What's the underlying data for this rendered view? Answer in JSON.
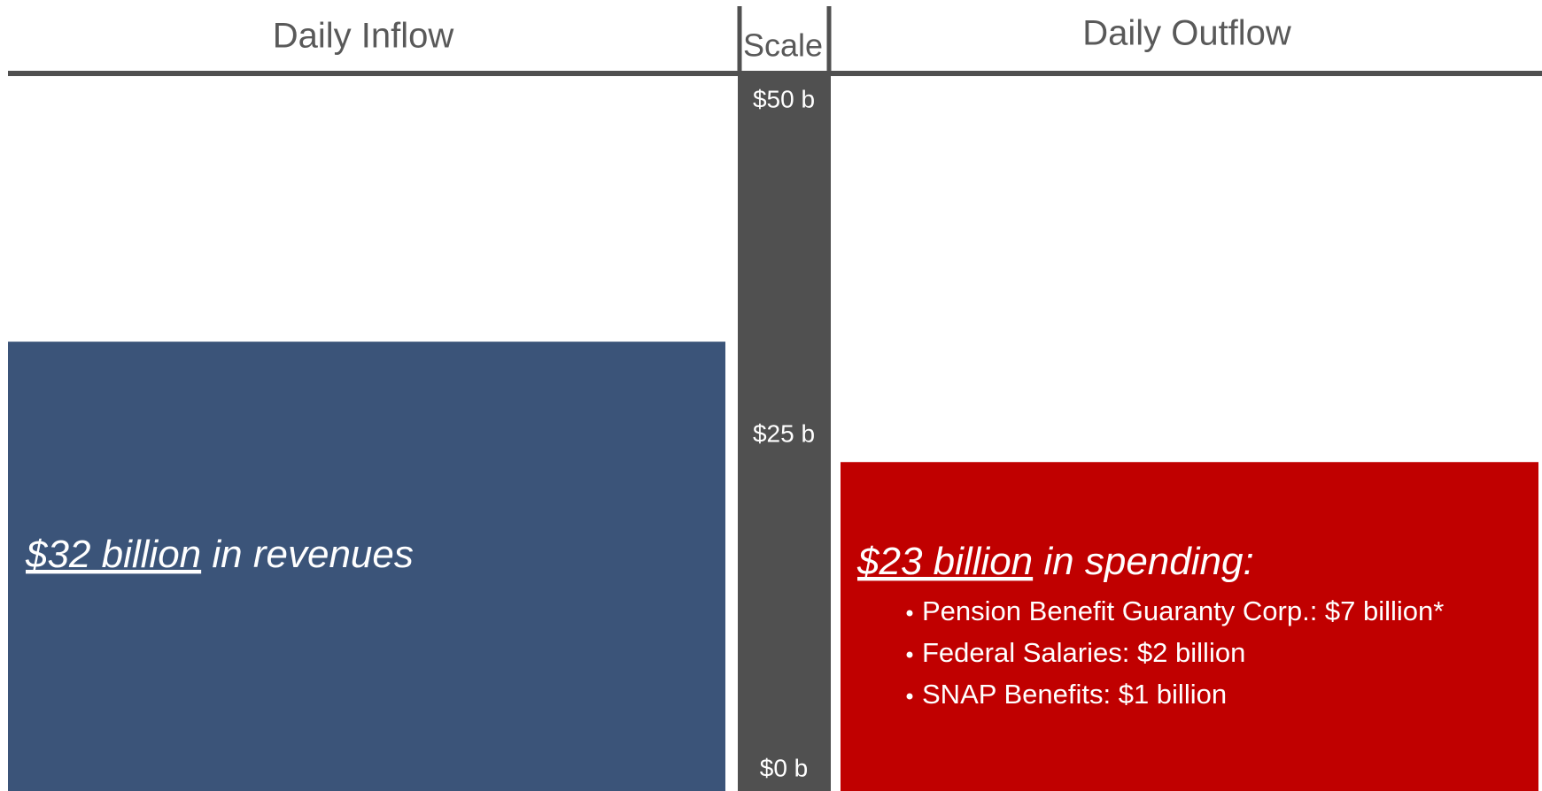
{
  "chart_data": {
    "type": "bar",
    "scale_title": "Scale",
    "categories": [
      "Daily Inflow",
      "Daily Outflow"
    ],
    "values": [
      32,
      23
    ],
    "value_labels": [
      "$32 billion",
      "$23 billion"
    ],
    "descriptions": [
      " in revenues",
      " in spending:"
    ],
    "colors": [
      "#3b5479",
      "#c00000"
    ],
    "details": [
      [],
      [
        "Pension Benefit Guaranty Corp.: $7 billion*",
        "Federal Salaries: $2 billion",
        "SNAP Benefits: $1 billion"
      ]
    ],
    "ylim": [
      0,
      50
    ],
    "yticks": [
      {
        "value": 0,
        "label": "$0 b"
      },
      {
        "value": 25,
        "label": "$25 b"
      },
      {
        "value": 50,
        "label": "$50 b"
      }
    ]
  }
}
